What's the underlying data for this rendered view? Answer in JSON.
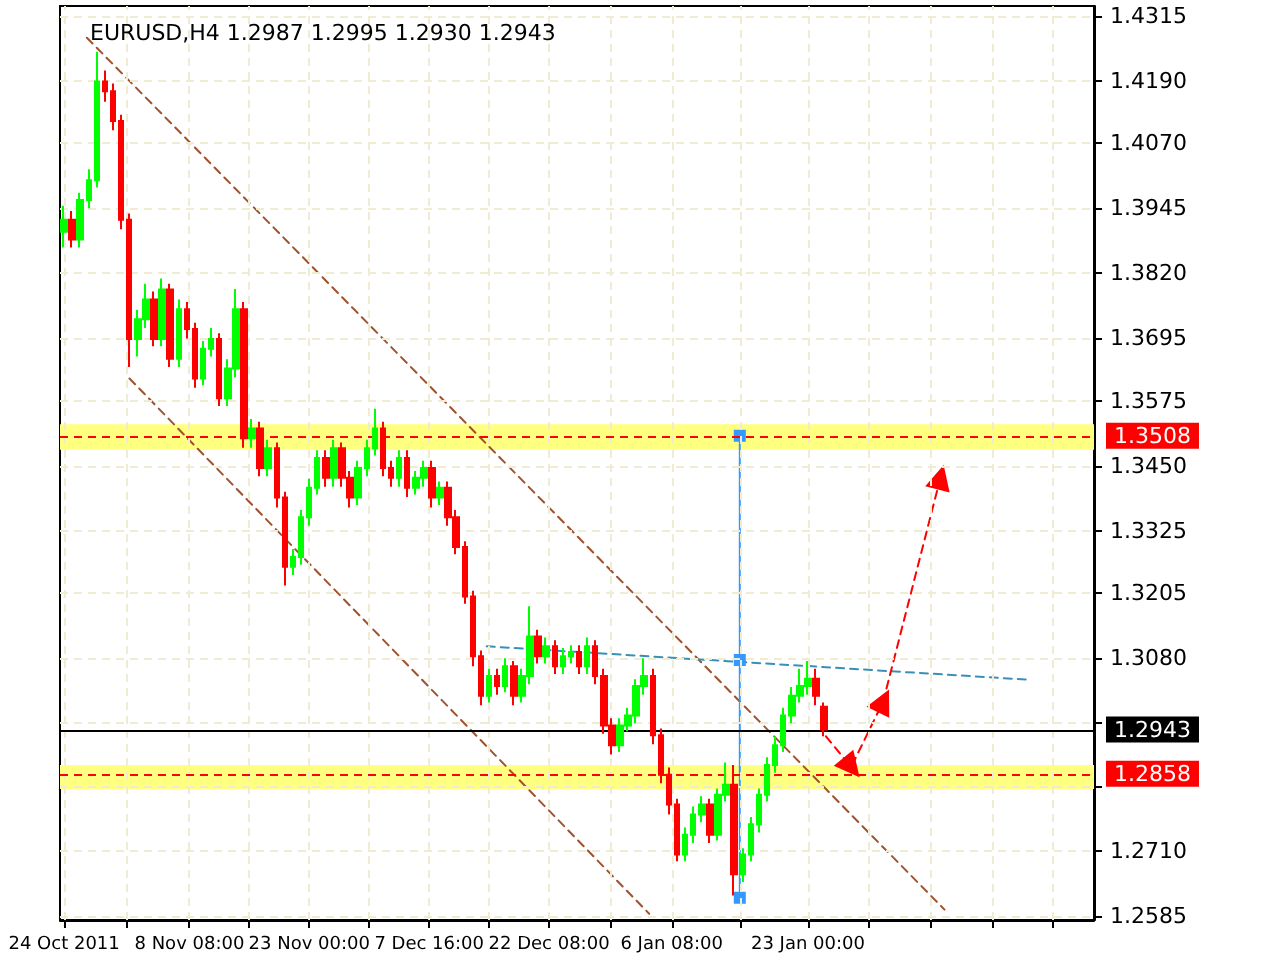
{
  "chart_data": {
    "type": "candlestick",
    "title": "EURUSD,H4 1.2987 1.2995 1.2930 1.2943",
    "grid": true,
    "xlim": [
      "2011-10-23T12:00",
      "2012-02-27T00:00"
    ],
    "xticks": [
      {
        "value": "2011-10-24T00:00",
        "label": "24 Oct 2011"
      },
      {
        "value": "2011-10-31T16:00",
        "label": null
      },
      {
        "value": "2011-11-08T08:00",
        "label": "8 Nov 08:00"
      },
      {
        "value": "2011-11-15T16:00",
        "label": null
      },
      {
        "value": "2011-11-23T00:00",
        "label": "23 Nov 00:00"
      },
      {
        "value": "2011-11-30T08:00",
        "label": null
      },
      {
        "value": "2011-12-07T16:00",
        "label": "7 Dec 16:00"
      },
      {
        "value": "2011-12-15T00:00",
        "label": null
      },
      {
        "value": "2011-12-22T08:00",
        "label": "22 Dec 08:00"
      },
      {
        "value": "2011-12-29T20:00",
        "label": null
      },
      {
        "value": "2012-01-06T08:00",
        "label": "6 Jan 08:00"
      },
      {
        "value": "2012-01-14T16:00",
        "label": null
      },
      {
        "value": "2012-01-23T00:00",
        "label": "23 Jan 00:00"
      },
      {
        "value": "2012-01-30T12:00",
        "label": null
      },
      {
        "value": "2012-02-07T00:00",
        "label": null
      },
      {
        "value": "2012-02-14T12:00",
        "label": null
      },
      {
        "value": "2012-02-22T00:00",
        "label": null
      }
    ],
    "ylim": [
      1.2577,
      1.4334
    ],
    "yticks": [
      1.4315,
      {
        "value": 1.419,
        "label": "1.4190"
      },
      {
        "value": 1.407,
        "label": "1.4070"
      },
      1.3945,
      {
        "value": 1.382,
        "label": "1.3820"
      },
      1.3695,
      1.3575,
      {
        "value": 1.345,
        "label": "1.3450"
      },
      1.3325,
      1.3205,
      {
        "value": 1.308,
        "label": "1.3080"
      },
      {
        "value": 1.2955,
        "label": null
      },
      {
        "value": 1.2835,
        "label": null
      },
      {
        "value": 1.271,
        "label": "1.2710"
      },
      1.2585
    ],
    "series": [
      {
        "type": "candlestick",
        "x": [
          "2011-10-24",
          "2011-10-25",
          "2011-10-26",
          "2011-10-27",
          "2011-10-28",
          "2011-10-29",
          "2011-10-30",
          "2011-10-31",
          "2011-11-01",
          "2011-11-02",
          "2011-11-03",
          "2011-11-04",
          "2011-11-05",
          "2011-11-06",
          "2011-11-07",
          "2011-11-08",
          "2011-11-09",
          "2011-11-10",
          "2011-11-11",
          "2011-11-12",
          "2011-11-13",
          "2011-11-14",
          "2011-11-15",
          "2011-11-16",
          "2011-11-17",
          "2011-11-18",
          "2011-11-19",
          "2011-11-20",
          "2011-11-21",
          "2011-11-22",
          "2011-11-23",
          "2011-11-24",
          "2011-11-25",
          "2011-11-26",
          "2011-11-27",
          "2011-11-28",
          "2011-11-29",
          "2011-11-30",
          "2011-12-01",
          "2011-12-02",
          "2011-12-03",
          "2011-12-04",
          "2011-12-05",
          "2011-12-06",
          "2011-12-07",
          "2011-12-08",
          "2011-12-09",
          "2011-12-10",
          "2011-12-11",
          "2011-12-12",
          "2011-12-13",
          "2011-12-14",
          "2011-12-15",
          "2011-12-16",
          "2011-12-17",
          "2011-12-18",
          "2011-12-19",
          "2011-12-20",
          "2011-12-21",
          "2011-12-22",
          "2011-12-23",
          "2011-12-24",
          "2011-12-25",
          "2011-12-26",
          "2011-12-27",
          "2011-12-28",
          "2011-12-29",
          "2011-12-30",
          "2011-12-31",
          "2012-01-01",
          "2012-01-02",
          "2012-01-03",
          "2012-01-04",
          "2012-01-05",
          "2012-01-06",
          "2012-01-07",
          "2012-01-08",
          "2012-01-09",
          "2012-01-10",
          "2012-01-11",
          "2012-01-12",
          "2012-01-13",
          "2012-01-14",
          "2012-01-15",
          "2012-01-16",
          "2012-01-17",
          "2012-01-18",
          "2012-01-19",
          "2012-01-20",
          "2012-01-21",
          "2012-01-22",
          "2012-01-23",
          "2012-01-24",
          "2012-01-25"
        ],
        "ohlc": [
          [
            1.39,
            1.395,
            1.387,
            1.3923
          ],
          [
            1.3923,
            1.394,
            1.387,
            1.3885
          ],
          [
            1.3885,
            1.3975,
            1.387,
            1.3961
          ],
          [
            1.3961,
            1.402,
            1.3945,
            1.3999
          ],
          [
            1.3999,
            1.4246,
            1.3985,
            1.4189
          ],
          [
            1.4189,
            1.421,
            1.415,
            1.417
          ],
          [
            1.417,
            1.4185,
            1.4095,
            1.4113
          ],
          [
            1.4113,
            1.4125,
            1.3905,
            1.3923
          ],
          [
            1.3923,
            1.3935,
            1.364,
            1.3694
          ],
          [
            1.3694,
            1.375,
            1.366,
            1.3732
          ],
          [
            1.3732,
            1.38,
            1.3715,
            1.377
          ],
          [
            1.377,
            1.3785,
            1.368,
            1.3694
          ],
          [
            1.3694,
            1.381,
            1.368,
            1.3789
          ],
          [
            1.3789,
            1.38,
            1.364,
            1.3656
          ],
          [
            1.3656,
            1.377,
            1.364,
            1.3751
          ],
          [
            1.3751,
            1.3765,
            1.3695,
            1.3713
          ],
          [
            1.3713,
            1.3725,
            1.36,
            1.3618
          ],
          [
            1.3618,
            1.369,
            1.3605,
            1.3675
          ],
          [
            1.3675,
            1.3715,
            1.366,
            1.3694
          ],
          [
            1.3694,
            1.3705,
            1.3565,
            1.358
          ],
          [
            1.358,
            1.3655,
            1.3565,
            1.3637
          ],
          [
            1.3637,
            1.379,
            1.362,
            1.3751
          ],
          [
            1.3751,
            1.3765,
            1.3485,
            1.3503
          ],
          [
            1.3503,
            1.354,
            1.3485,
            1.3522
          ],
          [
            1.3522,
            1.3535,
            1.343,
            1.3446
          ],
          [
            1.3446,
            1.35,
            1.343,
            1.3484
          ],
          [
            1.3484,
            1.3495,
            1.337,
            1.3389
          ],
          [
            1.3389,
            1.34,
            1.322,
            1.3256
          ],
          [
            1.3256,
            1.329,
            1.324,
            1.3275
          ],
          [
            1.3275,
            1.3365,
            1.326,
            1.3351
          ],
          [
            1.3351,
            1.3425,
            1.3335,
            1.3408
          ],
          [
            1.3408,
            1.348,
            1.3395,
            1.3465
          ],
          [
            1.3465,
            1.348,
            1.341,
            1.3427
          ],
          [
            1.3427,
            1.35,
            1.341,
            1.3484
          ],
          [
            1.3484,
            1.3495,
            1.341,
            1.3427
          ],
          [
            1.3427,
            1.344,
            1.337,
            1.3389
          ],
          [
            1.3389,
            1.346,
            1.3375,
            1.3446
          ],
          [
            1.3446,
            1.35,
            1.343,
            1.3484
          ],
          [
            1.3484,
            1.356,
            1.347,
            1.3522
          ],
          [
            1.3522,
            1.3535,
            1.343,
            1.3446
          ],
          [
            1.3446,
            1.346,
            1.341,
            1.3427
          ],
          [
            1.3427,
            1.348,
            1.341,
            1.3465
          ],
          [
            1.3465,
            1.348,
            1.339,
            1.3408
          ],
          [
            1.3408,
            1.344,
            1.3395,
            1.3427
          ],
          [
            1.3427,
            1.346,
            1.341,
            1.3446
          ],
          [
            1.3446,
            1.346,
            1.337,
            1.3389
          ],
          [
            1.3389,
            1.342,
            1.3375,
            1.3408
          ],
          [
            1.3408,
            1.342,
            1.3335,
            1.3351
          ],
          [
            1.3351,
            1.3365,
            1.328,
            1.3294
          ],
          [
            1.3294,
            1.3305,
            1.3185,
            1.3199
          ],
          [
            1.3199,
            1.321,
            1.3065,
            1.3084
          ],
          [
            1.3084,
            1.3095,
            1.299,
            1.3008
          ],
          [
            1.3008,
            1.306,
            1.2995,
            1.3046
          ],
          [
            1.3046,
            1.306,
            1.301,
            1.3027
          ],
          [
            1.3027,
            1.308,
            1.3015,
            1.3065
          ],
          [
            1.3065,
            1.3075,
            1.299,
            1.3008
          ],
          [
            1.3008,
            1.306,
            1.2995,
            1.3046
          ],
          [
            1.3046,
            1.318,
            1.303,
            1.3122
          ],
          [
            1.3122,
            1.3135,
            1.307,
            1.3084
          ],
          [
            1.3084,
            1.312,
            1.307,
            1.3103
          ],
          [
            1.3103,
            1.3115,
            1.305,
            1.3065
          ],
          [
            1.3065,
            1.31,
            1.305,
            1.3084
          ],
          [
            1.3084,
            1.3105,
            1.307,
            1.3092
          ],
          [
            1.3092,
            1.3105,
            1.305,
            1.3065
          ],
          [
            1.3065,
            1.312,
            1.305,
            1.3103
          ],
          [
            1.3103,
            1.3115,
            1.303,
            1.3046
          ],
          [
            1.3046,
            1.306,
            1.2935,
            1.2951
          ],
          [
            1.2951,
            1.2965,
            1.2895,
            1.2913
          ],
          [
            1.2913,
            1.2965,
            1.29,
            1.2951
          ],
          [
            1.2951,
            1.2985,
            1.294,
            1.297
          ],
          [
            1.297,
            1.304,
            1.2955,
            1.3027
          ],
          [
            1.3027,
            1.308,
            1.301,
            1.3046
          ],
          [
            1.3046,
            1.306,
            1.2915,
            1.2932
          ],
          [
            1.2932,
            1.2945,
            1.284,
            1.2856
          ],
          [
            1.2856,
            1.287,
            1.278,
            1.2799
          ],
          [
            1.2799,
            1.281,
            1.269,
            1.2703
          ],
          [
            1.2703,
            1.2755,
            1.269,
            1.2741
          ],
          [
            1.2741,
            1.2795,
            1.2725,
            1.278
          ],
          [
            1.278,
            1.2815,
            1.2765,
            1.2799
          ],
          [
            1.2799,
            1.281,
            1.2725,
            1.2741
          ],
          [
            1.2741,
            1.283,
            1.273,
            1.2818
          ],
          [
            1.2818,
            1.288,
            1.2805,
            1.2837
          ],
          [
            1.2837,
            1.2875,
            1.2624,
            1.2665
          ],
          [
            1.2665,
            1.2715,
            1.265,
            1.2703
          ],
          [
            1.2703,
            1.2775,
            1.269,
            1.2761
          ],
          [
            1.2761,
            1.283,
            1.2745,
            1.2818
          ],
          [
            1.2818,
            1.289,
            1.2805,
            1.2875
          ],
          [
            1.2875,
            1.293,
            1.286,
            1.2913
          ],
          [
            1.2913,
            1.2985,
            1.29,
            1.297
          ],
          [
            1.297,
            1.3025,
            1.2955,
            1.3008
          ],
          [
            1.3008,
            1.306,
            1.2995,
            1.3027
          ],
          [
            1.3027,
            1.3075,
            1.301,
            1.3041
          ],
          [
            1.3041,
            1.306,
            1.299,
            1.3008
          ],
          [
            1.2987,
            1.2995,
            1.293,
            1.2943
          ]
        ],
        "colors": [
          "#00ff00",
          "#ff0000",
          "#00ff00",
          "#00ff00",
          "#00ff00",
          "#ff0000",
          "#ff0000",
          "#ff0000",
          "#ff0000",
          "#00ff00",
          "#00ff00",
          "#ff0000",
          "#00ff00",
          "#ff0000",
          "#00ff00",
          "#ff0000",
          "#ff0000",
          "#00ff00",
          "#00ff00",
          "#ff0000",
          "#00ff00",
          "#00ff00",
          "#ff0000",
          "#00ff00",
          "#ff0000",
          "#00ff00",
          "#ff0000",
          "#ff0000",
          "#00ff00",
          "#00ff00",
          "#00ff00",
          "#00ff00",
          "#ff0000",
          "#00ff00",
          "#ff0000",
          "#ff0000",
          "#00ff00",
          "#00ff00",
          "#00ff00",
          "#ff0000",
          "#ff0000",
          "#00ff00",
          "#ff0000",
          "#00ff00",
          "#00ff00",
          "#ff0000",
          "#00ff00",
          "#ff0000",
          "#ff0000",
          "#ff0000",
          "#ff0000",
          "#ff0000",
          "#00ff00",
          "#ff0000",
          "#00ff00",
          "#ff0000",
          "#00ff00",
          "#00ff00",
          "#ff0000",
          "#00ff00",
          "#ff0000",
          "#00ff00",
          "#00ff00",
          "#ff0000",
          "#00ff00",
          "#ff0000",
          "#ff0000",
          "#ff0000",
          "#00ff00",
          "#00ff00",
          "#00ff00",
          "#00ff00",
          "#ff0000",
          "#ff0000",
          "#ff0000",
          "#ff0000",
          "#00ff00",
          "#00ff00",
          "#00ff00",
          "#ff0000",
          "#00ff00",
          "#00ff00",
          "#ff0000",
          "#00ff00",
          "#00ff00",
          "#00ff00",
          "#00ff00",
          "#00ff00",
          "#00ff00",
          "#00ff00",
          "#00ff00",
          "#00ff00",
          "#ff0000",
          "#ff0000"
        ]
      },
      {
        "type": "line",
        "x": [
          "2011-10-26T19:00",
          "2012-02-08T17:00"
        ],
        "values": [
          1.4273,
          1.2597
        ],
        "color": "#a0522d",
        "line_style": "dashed",
        "marker": "none"
      },
      {
        "type": "line",
        "x": [
          "2011-11-01T00:00",
          "2012-01-03T14:00"
        ],
        "values": [
          1.3618,
          1.2589
        ],
        "color": "#a0522d",
        "line_style": "dashed",
        "marker": "none"
      },
      {
        "type": "line",
        "x": [
          "2011-12-14T17:00",
          "2012-02-19T00:00"
        ],
        "values": [
          1.3103,
          1.3039
        ],
        "color": "#3a8fb7",
        "line_style": "dashed",
        "marker": "none"
      },
      {
        "type": "line",
        "x": [
          "2012-01-14T16:00",
          "2012-01-14T16:00",
          "2012-01-14T16:00"
        ],
        "values": [
          1.3508,
          1.3077,
          1.262
        ],
        "color": "#3399ff",
        "line_style": "solid",
        "marker": "square"
      },
      {
        "type": "line",
        "x": [
          "2012-01-25T05:00",
          "2012-01-28T07:00",
          "2012-02-01T05:00",
          "2012-02-08T05:00"
        ],
        "values": [
          1.293,
          1.2871,
          1.2997,
          1.3427
        ],
        "color": "#ff0000",
        "line_style": "dashed",
        "marker": "triangle"
      }
    ],
    "ref_lines": [
      {
        "axis": "y",
        "value": 1.3508,
        "label": "1.3508",
        "color": "#ff0000",
        "line_style": "dashed"
      },
      {
        "axis": "y",
        "value": 1.2858,
        "label": "1.2858",
        "color": "#ff0000",
        "line_style": "dashed"
      },
      {
        "axis": "y",
        "value": 1.2943,
        "label": "1.2943",
        "color": "#000000",
        "line_style": "solid"
      }
    ],
    "bands": [
      {
        "axis": "y",
        "from": 1.3481,
        "to": 1.353,
        "color": "#ffff80"
      },
      {
        "axis": "y",
        "from": 1.2829,
        "to": 1.2875,
        "color": "#ffff80"
      }
    ]
  }
}
